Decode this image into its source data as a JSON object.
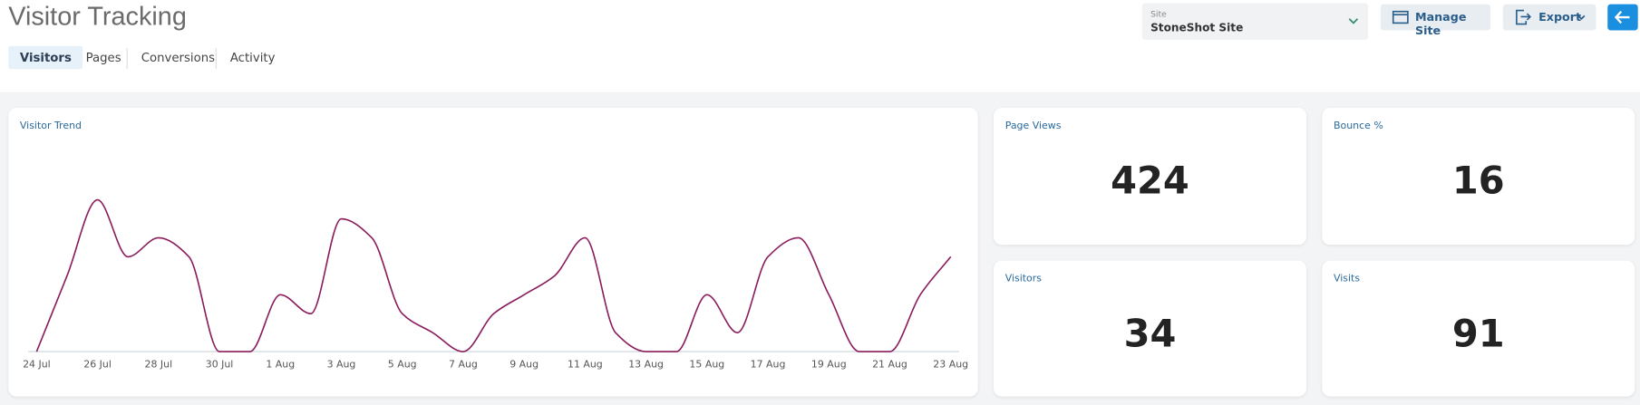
{
  "header": {
    "title": "Visitor Tracking",
    "site_label": "Site",
    "site_value": "StoneShot Site",
    "buttons": [
      "Manage Site",
      "Export"
    ]
  },
  "tabs": [
    "Visitors",
    "Pages",
    "Conversions",
    "Activity"
  ],
  "chart_data": {
    "type": "line",
    "title": "Visitor Trend",
    "categories": [
      "24 Jul",
      null,
      "26 Jul",
      null,
      "28 Jul",
      null,
      "30 Jul",
      null,
      "1 Aug",
      null,
      "3 Aug",
      null,
      "5 Aug",
      null,
      "7 Aug",
      null,
      "9 Aug",
      null,
      "11 Aug",
      null,
      "13 Aug",
      null,
      "15 Aug",
      null,
      "17 Aug",
      null,
      "19 Aug",
      null,
      "21 Aug",
      null,
      "23 Aug"
    ],
    "values": [
      0,
      4,
      8,
      5,
      6,
      5,
      0,
      0,
      3,
      2,
      7,
      6,
      2,
      1,
      0,
      2,
      3,
      4,
      6,
      1,
      0,
      0,
      3,
      1,
      5,
      6,
      3,
      0,
      0,
      3,
      5
    ],
    "color": "#8a1c5c"
  },
  "metrics": [
    {
      "label": "Page Views",
      "value": 424
    },
    {
      "label": "Bounce %",
      "value": 16
    },
    {
      "label": "Visitors",
      "value": 34
    },
    {
      "label": "Visits",
      "value": 91
    }
  ]
}
